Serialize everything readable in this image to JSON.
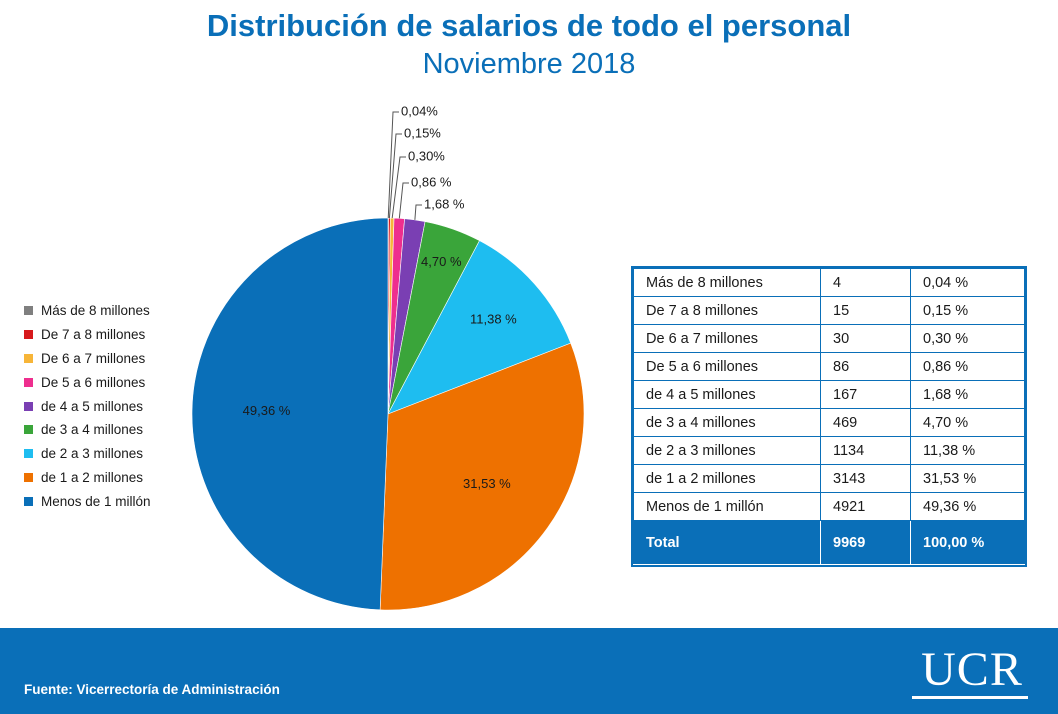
{
  "header": {
    "title": "Distribución de salarios de todo el personal",
    "subtitle": "Noviembre 2018"
  },
  "chart_data": {
    "type": "pie",
    "slices": [
      {
        "label": "Más de 8 millones",
        "value": 0.04,
        "display": "0,04%",
        "color": "#7f7f7f"
      },
      {
        "label": "De 7 a 8 millones",
        "value": 0.15,
        "display": "0,15%",
        "color": "#d7191c"
      },
      {
        "label": "De 6 a 7 millones",
        "value": 0.3,
        "display": "0,30%",
        "color": "#f7b538"
      },
      {
        "label": "De 5 a 6 millones",
        "value": 0.86,
        "display": "0,86 %",
        "color": "#ee2e8e"
      },
      {
        "label": "de 4 a 5 millones",
        "value": 1.68,
        "display": "1,68 %",
        "color": "#7a3fb3"
      },
      {
        "label": "de 3 a 4 millones",
        "value": 4.7,
        "display": "4,70 %",
        "color": "#3aa53a"
      },
      {
        "label": "de 2 a 3 millones",
        "value": 11.38,
        "display": "11,38 %",
        "color": "#1ebdf0"
      },
      {
        "label": "de 1 a 2 millones",
        "value": 31.53,
        "display": "31,53 %",
        "color": "#ee7100"
      },
      {
        "label": "Menos de 1 millón",
        "value": 49.36,
        "display": "49,36 %",
        "color": "#0a6fb8"
      }
    ],
    "legend_position": "left"
  },
  "table": {
    "rows": [
      {
        "label": "Más de 8 millones",
        "count": "4",
        "percent": "0,04 %"
      },
      {
        "label": "De 7 a 8 millones",
        "count": "15",
        "percent": "0,15 %"
      },
      {
        "label": "De 6 a 7 millones",
        "count": "30",
        "percent": "0,30 %"
      },
      {
        "label": "De 5 a 6 millones",
        "count": "86",
        "percent": "0,86 %"
      },
      {
        "label": "de 4 a 5 millones",
        "count": "167",
        "percent": "1,68 %"
      },
      {
        "label": "de 3 a 4 millones",
        "count": "469",
        "percent": "4,70 %"
      },
      {
        "label": "de 2 a 3 millones",
        "count": "1134",
        "percent": "11,38 %"
      },
      {
        "label": "de 1 a 2 millones",
        "count": "3143",
        "percent": "31,53 %"
      },
      {
        "label": "Menos de 1 millón",
        "count": "4921",
        "percent": "49,36 %"
      }
    ],
    "total": {
      "label": "Total",
      "count": "9969",
      "percent": "100,00 %"
    }
  },
  "footer": {
    "source": "Fuente: Vicerrectoría de Administración",
    "logo_text": "UCR"
  }
}
